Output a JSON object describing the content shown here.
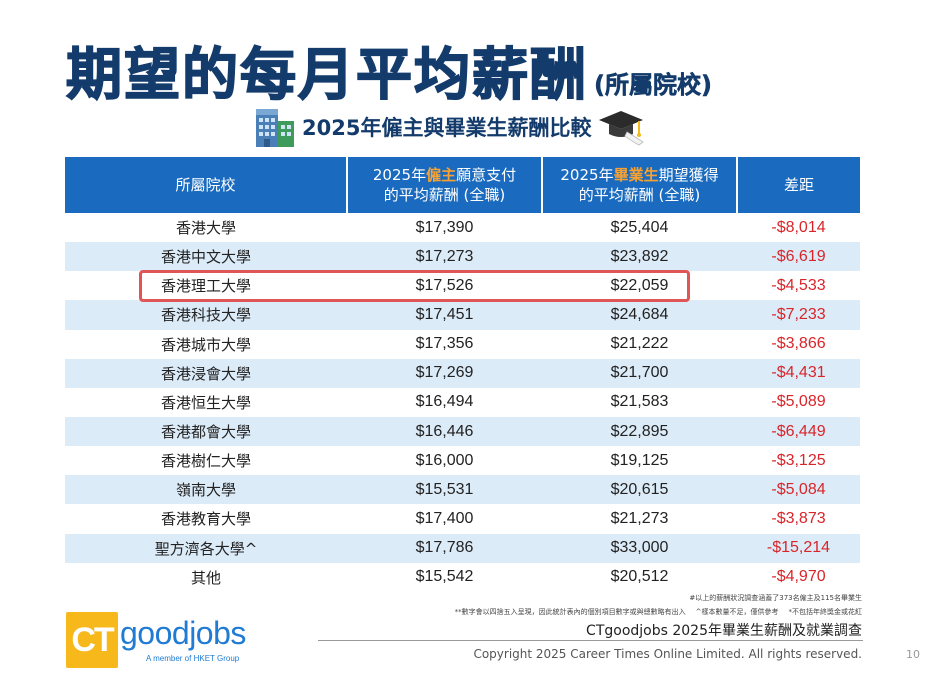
{
  "title": {
    "main": "期望的每月平均薪酬",
    "sub": "(所屬院校)"
  },
  "subtitle": "2025年僱主與畢業生薪酬比較",
  "table": {
    "headers": {
      "school": "所屬院校",
      "employer_prefix": "2025年",
      "employer_hl": "僱主",
      "employer_rest": "願意支付",
      "employer_line2": "的平均薪酬 (全職)",
      "grad_prefix": "2025年",
      "grad_hl": "畢業生",
      "grad_rest": "期望獲得",
      "grad_line2": "的平均薪酬 (全職)",
      "diff": "差距"
    },
    "rows": [
      {
        "school": "香港大學",
        "employer": "$17,390",
        "graduate": "$25,404",
        "diff": "-$8,014"
      },
      {
        "school": "香港中文大學",
        "employer": "$17,273",
        "graduate": "$23,892",
        "diff": "-$6,619"
      },
      {
        "school": "香港理工大學",
        "employer": "$17,526",
        "graduate": "$22,059",
        "diff": "-$4,533"
      },
      {
        "school": "香港科技大學",
        "employer": "$17,451",
        "graduate": "$24,684",
        "diff": "-$7,233"
      },
      {
        "school": "香港城市大學",
        "employer": "$17,356",
        "graduate": "$21,222",
        "diff": "-$3,866"
      },
      {
        "school": "香港浸會大學",
        "employer": "$17,269",
        "graduate": "$21,700",
        "diff": "-$4,431"
      },
      {
        "school": "香港恒生大學",
        "employer": "$16,494",
        "graduate": "$21,583",
        "diff": "-$5,089"
      },
      {
        "school": "香港都會大學",
        "employer": "$16,446",
        "graduate": "$22,895",
        "diff": "-$6,449"
      },
      {
        "school": "香港樹仁大學",
        "employer": "$16,000",
        "graduate": "$19,125",
        "diff": "-$3,125"
      },
      {
        "school": "嶺南大學",
        "employer": "$15,531",
        "graduate": "$20,615",
        "diff": "-$5,084"
      },
      {
        "school": "香港教育大學",
        "employer": "$17,400",
        "graduate": "$21,273",
        "diff": "-$3,873"
      },
      {
        "school": "聖方濟各大學^",
        "employer": "$17,786",
        "graduate": "$33,000",
        "diff": "-$15,214"
      },
      {
        "school": "其他",
        "employer": "$15,542",
        "graduate": "$20,512",
        "diff": "-$4,970"
      }
    ]
  },
  "notes": {
    "survey": "#以上的薪酬狀況調查涵蓋了373名僱主及115名畢業生",
    "rounding": "**數字會以四捨五入呈現，因此統計表內的個別項目數字或與總數略有出入",
    "sample": "^樣本數量不足，僅供參考",
    "bonus": "*不包括年終獎金或花紅"
  },
  "source": "CTgoodjobs 2025年畢業生薪酬及就業調查",
  "copyright": "Copyright 2025 Career Times Online Limited. All rights reserved.",
  "page_number": "10",
  "logo": {
    "ct": "CT",
    "brand": "goodjobs",
    "member": "A member of HKET Group"
  },
  "colors": {
    "title": "#133b6b",
    "header_bg": "#1a6bbf",
    "header_highlight": "#f7a232",
    "row_alt": "#dcebf8",
    "diff_text": "#d9252a",
    "highlight_border": "#e05555"
  },
  "icons": {
    "subtitle_left": "office-building-icon",
    "subtitle_right": "graduation-cap-icon"
  }
}
